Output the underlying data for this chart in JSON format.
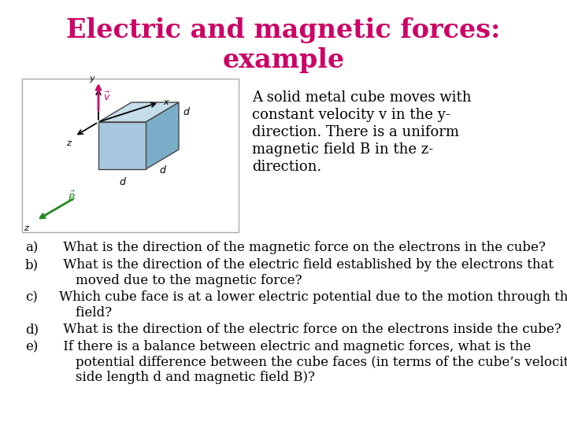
{
  "title_line1": "Electric and magnetic forces:",
  "title_line2": "example",
  "title_color": "#cc0066",
  "title_fontsize": 24,
  "bg_color": "#ffffff",
  "description_lines": [
    "A solid metal cube moves with",
    "constant velocity v in the y-",
    "direction. There is a uniform",
    "magnetic field B in the z-",
    "direction."
  ],
  "desc_fontsize": 13,
  "questions": [
    {
      "label": "a)",
      "text": " What is the direction of the magnetic force on the electrons in the cube?",
      "lines": 1
    },
    {
      "label": "b)",
      "text": " What is the direction of the electric field established by the electrons that\n    moved due to the magnetic force?",
      "lines": 2
    },
    {
      "label": "c)",
      "text": "Which cube face is at a lower electric potential due to the motion through the\n    field?",
      "lines": 2
    },
    {
      "label": "d)",
      "text": " What is the direction of the electric force on the electrons inside the cube?",
      "lines": 1
    },
    {
      "label": "e)",
      "text": " If there is a balance between electric and magnetic forces, what is the\n    potential difference between the cube faces (in terms of the cube’s velocity v,\n    side length d and magnetic field B)?",
      "lines": 3
    }
  ],
  "q_fontsize": 12,
  "cube_front_color": "#a8c8e0",
  "cube_right_color": "#7aaec8",
  "cube_top_color": "#c5dcea",
  "cube_edge_color": "#444444",
  "arrow_v_color": "#cc0066",
  "arrow_B_color": "#228B22",
  "axis_color": "#000000",
  "box_color": "#aaaaaa"
}
